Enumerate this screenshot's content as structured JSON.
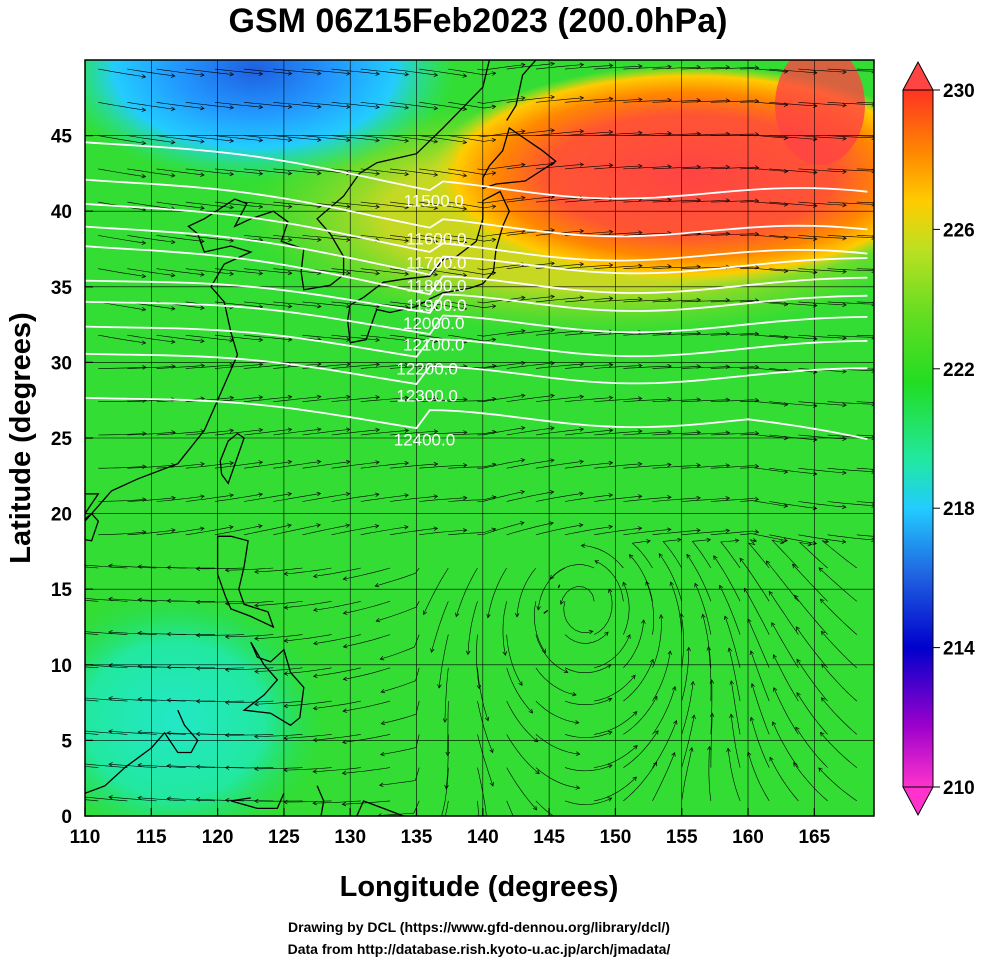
{
  "title": "GSM 06Z15Feb2023 (200.0hPa)",
  "x_axis": {
    "title": "Longitude (degrees)",
    "range": [
      110,
      169.5
    ],
    "ticks": [
      110,
      115,
      120,
      125,
      130,
      135,
      140,
      145,
      150,
      155,
      160,
      165
    ],
    "tick_labels": [
      "110",
      "115",
      "120",
      "125",
      "130",
      "135",
      "140",
      "145",
      "150",
      "155",
      "160",
      "165"
    ]
  },
  "y_axis": {
    "title": "Latitude  (degrees)",
    "range": [
      0,
      50
    ],
    "ticks": [
      0,
      5,
      10,
      15,
      20,
      25,
      30,
      35,
      40,
      45
    ],
    "tick_labels": [
      "0",
      "5",
      "10",
      "15",
      "20",
      "25",
      "30",
      "35",
      "40",
      "45"
    ]
  },
  "colorbar": {
    "range": [
      210,
      230
    ],
    "labels": [
      "230",
      "226",
      "222",
      "218",
      "214",
      "210"
    ],
    "label_values": [
      230,
      226,
      222,
      218,
      214,
      210
    ],
    "colors": [
      "#ff33cc",
      "#9900cc",
      "#0000cc",
      "#1f5fe0",
      "#22ccff",
      "#22e8a0",
      "#22dd22",
      "#66dd22",
      "#bbe022",
      "#ffcc00",
      "#ff8800",
      "#ff3322"
    ]
  },
  "contours": {
    "labels": [
      "11500.0",
      "11600.0",
      "11700.0",
      "11800.0",
      "11900.0",
      "12000.0",
      "12100.0",
      "12200.0",
      "12300.0",
      "12400.0"
    ],
    "values": [
      11500,
      11600,
      11700,
      11800,
      11900,
      12000,
      12100,
      12200,
      12300,
      12400
    ],
    "label_lon": [
      136.3,
      136.5,
      136.5,
      136.5,
      136.5,
      136.3,
      136.3,
      135.8,
      135.8,
      135.6
    ],
    "label_lat": [
      40.7,
      38.2,
      36.6,
      35.1,
      33.8,
      32.6,
      31.2,
      29.6,
      27.8,
      24.9
    ]
  },
  "temperature_features": [
    {
      "kind": "warm",
      "value": 230,
      "lon": 150,
      "lat": 41.5
    },
    {
      "kind": "cold",
      "value": 216,
      "lon": 124,
      "lat": 49
    },
    {
      "kind": "cool",
      "value": 219.5,
      "lon": 118,
      "lat": 7
    }
  ],
  "circulation_center": {
    "lon": 147.5,
    "lat": 14
  },
  "credits": [
    "Drawing by DCL (https://www.gfd-dennou.org/library/dcl/)",
    "Data from http://database.rish.kyoto-u.ac.jp/arch/jmadata/"
  ]
}
